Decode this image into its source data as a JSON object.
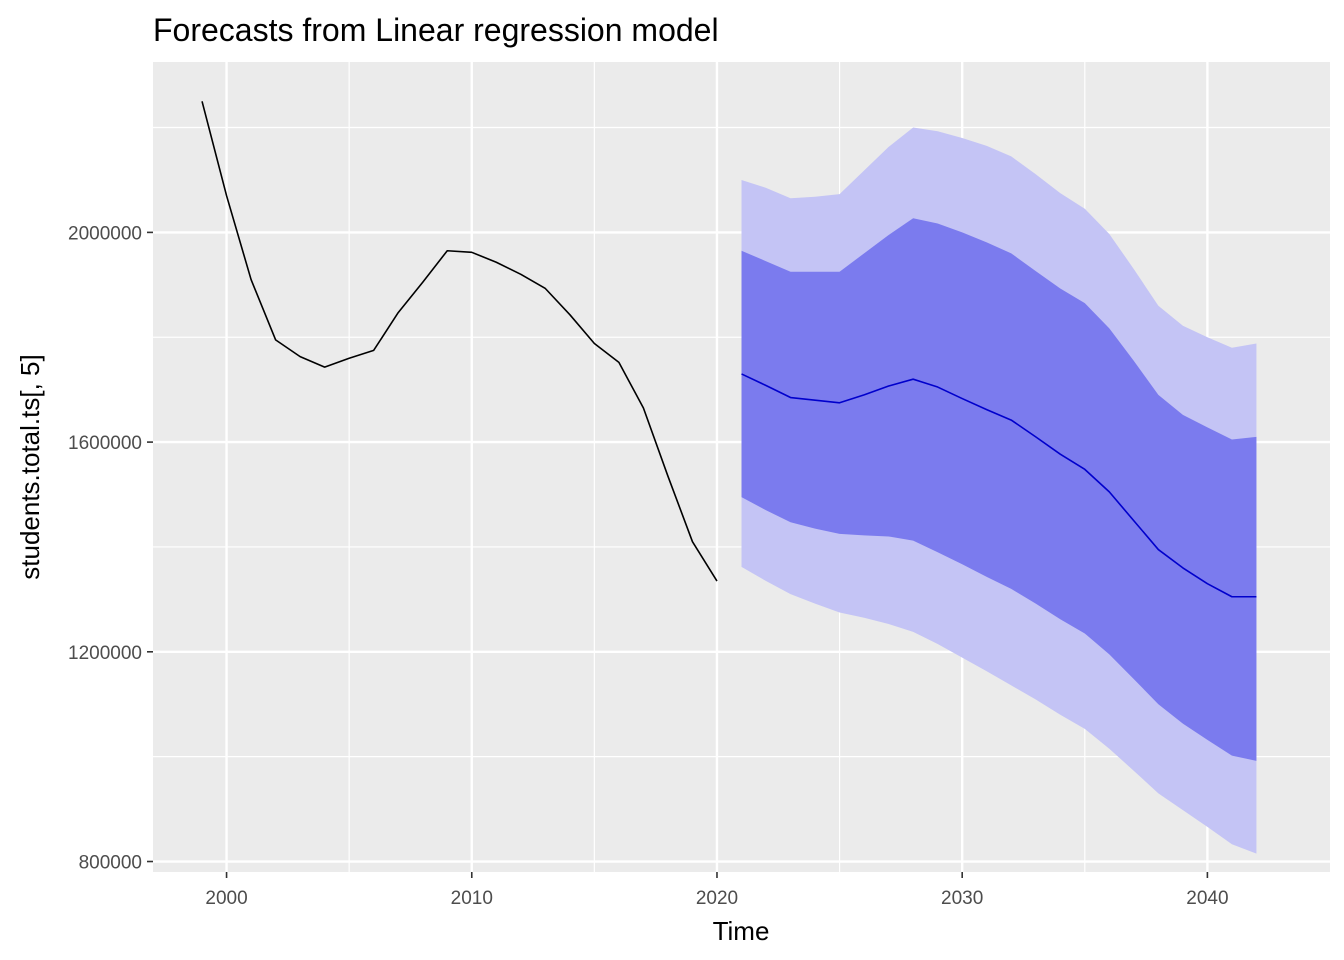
{
  "chart_data": {
    "type": "area",
    "title": "Forecasts from Linear regression model",
    "xlabel": "Time",
    "ylabel": "students.total.ts[, 5]",
    "xlim": [
      1997,
      2045
    ],
    "ylim": [
      780000,
      2325000
    ],
    "x_ticks": [
      2000,
      2010,
      2020,
      2030,
      2040
    ],
    "x_tick_labels": [
      "2000",
      "2010",
      "2020",
      "2030",
      "2040"
    ],
    "y_ticks": [
      800000,
      1200000,
      1600000,
      2000000
    ],
    "y_tick_labels": [
      "800000",
      "1200000",
      "1600000",
      "2000000"
    ],
    "grid": true,
    "legend": "none",
    "colors": {
      "panel_background": "#EBEBEB",
      "gridline": "#FFFFFF",
      "history_line": "#000000",
      "forecast_line": "#0000CC",
      "band_95": "#C4C4F5",
      "band_80": "#7B7BEE"
    },
    "history": {
      "x": [
        1999,
        2000,
        2001,
        2002,
        2003,
        2004,
        2005,
        2006,
        2007,
        2008,
        2009,
        2010,
        2011,
        2012,
        2013,
        2014,
        2015,
        2016,
        2017,
        2018,
        2019,
        2020
      ],
      "y": [
        2250000,
        2070000,
        1910000,
        1795000,
        1763000,
        1743000,
        1760000,
        1775000,
        1847000,
        1905000,
        1965000,
        1962000,
        1943000,
        1920000,
        1893000,
        1843000,
        1788000,
        1752000,
        1665000,
        1535000,
        1410000,
        1335000
      ]
    },
    "forecast": {
      "x": [
        2021,
        2022,
        2023,
        2024,
        2025,
        2026,
        2027,
        2028,
        2029,
        2030,
        2031,
        2032,
        2033,
        2034,
        2035,
        2036,
        2037,
        2038,
        2039,
        2040,
        2041,
        2042
      ],
      "mean": [
        1730000,
        1708000,
        1685000,
        1680000,
        1675000,
        1690000,
        1707000,
        1720000,
        1705000,
        1683000,
        1662000,
        1642000,
        1610000,
        1577000,
        1548000,
        1505000,
        1450000,
        1395000,
        1360000,
        1330000,
        1305000,
        1305000
      ],
      "lo80": [
        1495000,
        1470000,
        1447000,
        1435000,
        1425000,
        1422000,
        1420000,
        1412000,
        1390000,
        1367000,
        1343000,
        1320000,
        1292000,
        1262000,
        1235000,
        1195000,
        1148000,
        1100000,
        1063000,
        1032000,
        1002000,
        992000
      ],
      "hi80": [
        1965000,
        1945000,
        1925000,
        1925000,
        1925000,
        1960000,
        1995000,
        2027000,
        2017000,
        2000000,
        1981000,
        1960000,
        1926000,
        1893000,
        1865000,
        1817000,
        1755000,
        1690000,
        1652000,
        1628000,
        1605000,
        1610000
      ],
      "lo95": [
        1362000,
        1335000,
        1310000,
        1292000,
        1275000,
        1265000,
        1253000,
        1238000,
        1215000,
        1189000,
        1163000,
        1136000,
        1109000,
        1080000,
        1053000,
        1015000,
        973000,
        930000,
        898000,
        866000,
        833000,
        815000
      ],
      "hi95": [
        2100000,
        2085000,
        2065000,
        2068000,
        2073000,
        2118000,
        2163000,
        2200000,
        2193000,
        2180000,
        2165000,
        2145000,
        2111000,
        2075000,
        2045000,
        1997000,
        1930000,
        1860000,
        1822000,
        1800000,
        1780000,
        1788000
      ]
    }
  }
}
